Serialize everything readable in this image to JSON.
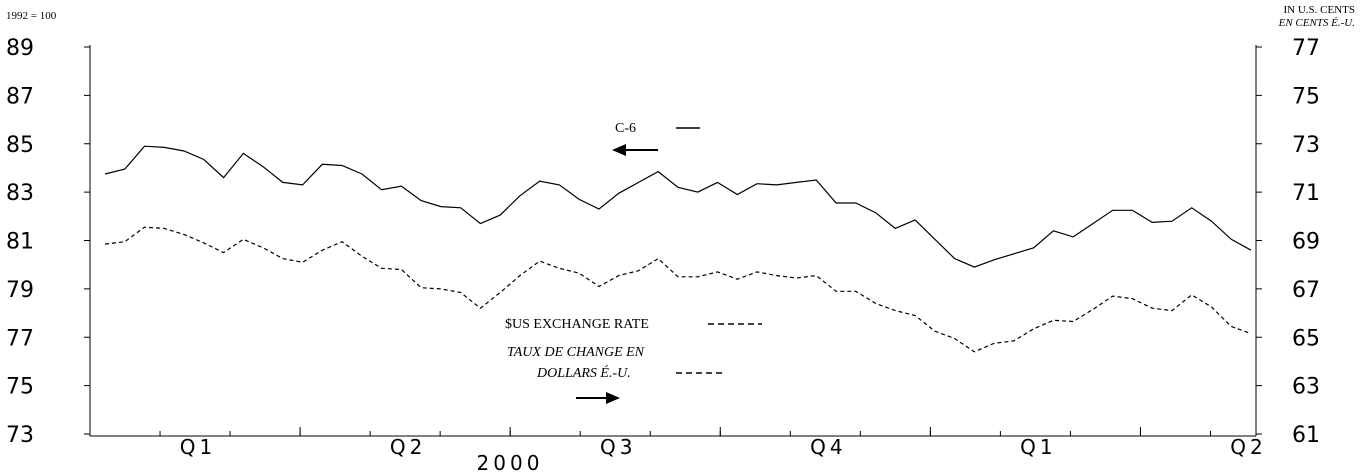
{
  "chart_data": {
    "type": "line",
    "left_axis": {
      "unit_label": "1992 = 100",
      "ylim": [
        73,
        89
      ],
      "ticks": [
        "89",
        "87",
        "85",
        "83",
        "81",
        "79",
        "77",
        "75",
        "73"
      ]
    },
    "right_axis": {
      "unit_label_en": "IN U.S. CENTS",
      "unit_label_fr": "EN CENTS É.-U.",
      "ylim": [
        61,
        77
      ],
      "ticks": [
        "77",
        "75",
        "73",
        "71",
        "69",
        "67",
        "65",
        "63",
        "61"
      ]
    },
    "x_axis": {
      "quarters": [
        "Q1",
        "Q2",
        "Q3",
        "Q4",
        "Q1",
        "Q2"
      ],
      "year_label": "2000",
      "n_points": 59
    },
    "series": [
      {
        "name": "C-6",
        "axis": "left",
        "style": "solid",
        "values": [
          83.75,
          83.95,
          84.9,
          84.85,
          84.7,
          84.35,
          83.6,
          84.6,
          84.05,
          83.4,
          83.3,
          84.15,
          84.1,
          83.75,
          83.1,
          83.25,
          82.65,
          82.4,
          82.35,
          81.7,
          82.05,
          82.85,
          83.45,
          83.3,
          82.7,
          82.3,
          82.95,
          83.4,
          83.85,
          83.2,
          83.0,
          83.4,
          82.9,
          83.35,
          83.3,
          83.4,
          83.5,
          82.55,
          82.55,
          82.15,
          81.5,
          81.85,
          81.05,
          80.25,
          79.9,
          80.2,
          80.45,
          80.7,
          81.4,
          81.15,
          81.7,
          82.25,
          82.25,
          81.75,
          81.8,
          82.35,
          81.8,
          81.05,
          80.6
        ]
      },
      {
        "name": "$US EXCHANGE RATE / TAUX DE CHANGE EN DOLLARS É.-U.",
        "axis": "right",
        "style": "dashed",
        "values": [
          68.85,
          68.95,
          69.55,
          69.5,
          69.25,
          68.9,
          68.5,
          69.05,
          68.7,
          68.25,
          68.1,
          68.6,
          68.95,
          68.35,
          67.85,
          67.8,
          67.05,
          67.0,
          66.85,
          66.2,
          66.85,
          67.55,
          68.15,
          67.85,
          67.65,
          67.1,
          67.55,
          67.75,
          68.25,
          67.5,
          67.5,
          67.7,
          67.4,
          67.7,
          67.55,
          67.45,
          67.55,
          66.9,
          66.9,
          66.4,
          66.1,
          65.9,
          65.25,
          64.95,
          64.4,
          64.75,
          64.85,
          65.35,
          65.7,
          65.65,
          66.15,
          66.7,
          66.6,
          66.2,
          66.1,
          66.75,
          66.25,
          65.45,
          65.15
        ]
      }
    ],
    "legend": {
      "c6_label": "C-6",
      "fx_label_en": "$US EXCHANGE RATE",
      "fx_label_fr_line1": "TAUX DE CHANGE EN",
      "fx_label_fr_line2": "DOLLARS É.-U."
    },
    "grid": false
  }
}
